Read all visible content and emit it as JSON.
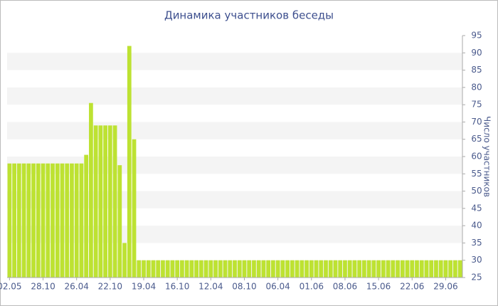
{
  "chart_data": {
    "type": "bar",
    "title": "Динамика участников беседы",
    "y_label": "Число участников",
    "categories": [
      "02.05",
      null,
      null,
      null,
      null,
      null,
      null,
      "28.10",
      null,
      null,
      null,
      null,
      null,
      null,
      "26.04",
      null,
      null,
      null,
      null,
      null,
      null,
      "22.10",
      null,
      null,
      null,
      null,
      null,
      null,
      "19.04",
      null,
      null,
      null,
      null,
      null,
      null,
      "16.10",
      null,
      null,
      null,
      null,
      null,
      null,
      "12.04",
      null,
      null,
      null,
      null,
      null,
      null,
      "08.10",
      null,
      null,
      null,
      null,
      null,
      null,
      "06.04",
      null,
      null,
      null,
      null,
      null,
      null,
      "01.06",
      null,
      null,
      null,
      null,
      null,
      null,
      "08.06",
      null,
      null,
      null,
      null,
      null,
      null,
      "15.06",
      null,
      null,
      null,
      null,
      null,
      null,
      "22.06",
      null,
      null,
      null,
      null,
      null,
      null,
      "29.06",
      null,
      null,
      null
    ],
    "values": [
      58,
      58,
      58,
      58,
      58,
      58,
      58,
      58,
      58,
      58,
      58,
      58,
      58,
      58,
      58,
      58,
      60.5,
      75.5,
      69,
      69,
      69,
      69,
      69,
      57.5,
      35,
      92,
      65,
      30,
      30,
      30,
      30,
      30,
      30,
      30,
      30,
      30,
      30,
      30,
      30,
      30,
      30,
      30,
      30,
      30,
      30,
      30,
      30,
      30,
      30,
      30,
      30,
      30,
      30,
      30,
      30,
      30,
      30,
      30,
      30,
      30,
      30,
      30,
      30,
      30,
      30,
      30,
      30,
      30,
      30,
      30,
      30,
      30,
      30,
      30,
      30,
      30,
      30,
      30,
      30,
      30,
      30,
      30,
      30,
      30,
      30,
      30,
      30,
      30,
      30,
      30,
      30,
      30,
      30,
      30,
      30
    ],
    "color": "#bde232",
    "ylim": [
      25,
      95
    ],
    "yticks": [
      25,
      30,
      35,
      40,
      45,
      50,
      55,
      60,
      65,
      70,
      75,
      80,
      85,
      90,
      95
    ],
    "grid": "bands"
  }
}
